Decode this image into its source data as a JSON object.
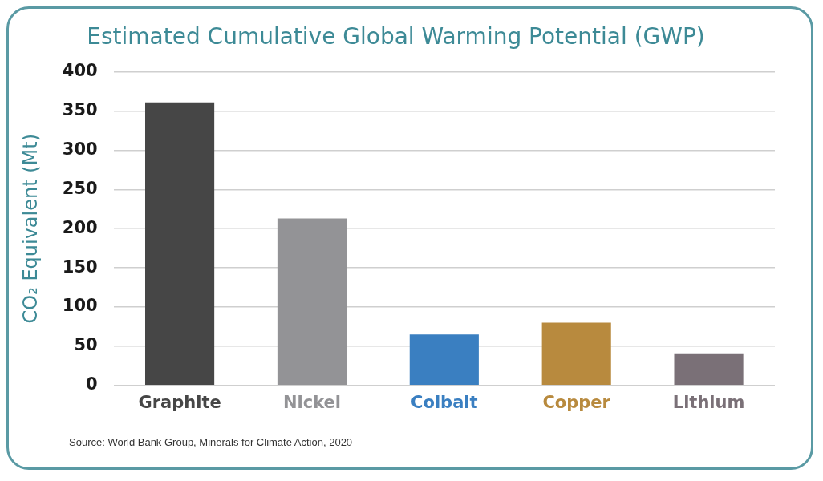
{
  "chart_data": {
    "type": "bar",
    "title": "Estimated Cumulative Global Warming Potential (GWP)",
    "ylabel": "CO₂ Equivalent (Mt)",
    "categories": [
      "Graphite",
      "Nickel",
      "Colbalt",
      "Copper",
      "Lithium"
    ],
    "values": [
      361,
      213,
      65,
      80,
      41
    ],
    "colors": [
      "#464646",
      "#939396",
      "#3a7fc1",
      "#b88a3e",
      "#7a7077"
    ],
    "ylim": [
      0,
      400
    ],
    "yticks": [
      0,
      50,
      100,
      150,
      200,
      250,
      300,
      350,
      400
    ],
    "grid": "y",
    "annotations": [
      "Source: World Bank Group, Minerals for Climate Action, 2020"
    ]
  }
}
